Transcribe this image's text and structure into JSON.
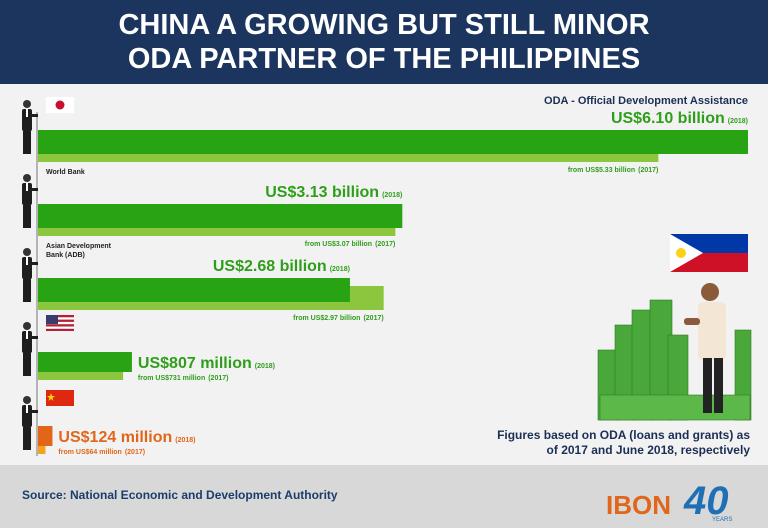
{
  "chart_data": {
    "type": "bar",
    "orientation": "horizontal",
    "title": "CHINA A GROWING BUT STILL MINOR ODA PARTNER OF THE PHILIPPINES",
    "subtitle": "ODA - Official Development Assistance",
    "note": "Figures based on ODA (loans and grants) as of 2017 and June 2018, respectively",
    "source": "Source: National Economic and Development Authority",
    "branding": {
      "name": "IBON",
      "anniversary": "40",
      "anniversary_label": "YEARS"
    },
    "categories": [
      null,
      "World Bank",
      "Asian Development Bank (ADB)",
      null,
      null
    ],
    "xlim": [
      0,
      6.1
    ],
    "series": [
      {
        "name": "(2017)",
        "colors": [
          "#8cc63e",
          "#8cc63e",
          "#8cc63e",
          "#8cc63e",
          "#f5a21e"
        ],
        "values": [
          5.33,
          3.07,
          2.97,
          0.731,
          0.064
        ],
        "value_labels": [
          "from US$5.33 billion",
          "from US$3.07 billion",
          "from US$2.97 billion",
          "from US$731 million",
          "from US$64 million"
        ]
      },
      {
        "name": "(2018)",
        "colors": [
          "#27a313",
          "#27a313",
          "#27a313",
          "#27a313",
          "#e2661a"
        ],
        "values": [
          6.1,
          3.13,
          2.68,
          0.807,
          0.124
        ],
        "value_labels": [
          "US$6.10 billion",
          "US$3.13 billion",
          "US$2.68 billion",
          "US$807 million",
          "US$124 million"
        ]
      }
    ]
  }
}
